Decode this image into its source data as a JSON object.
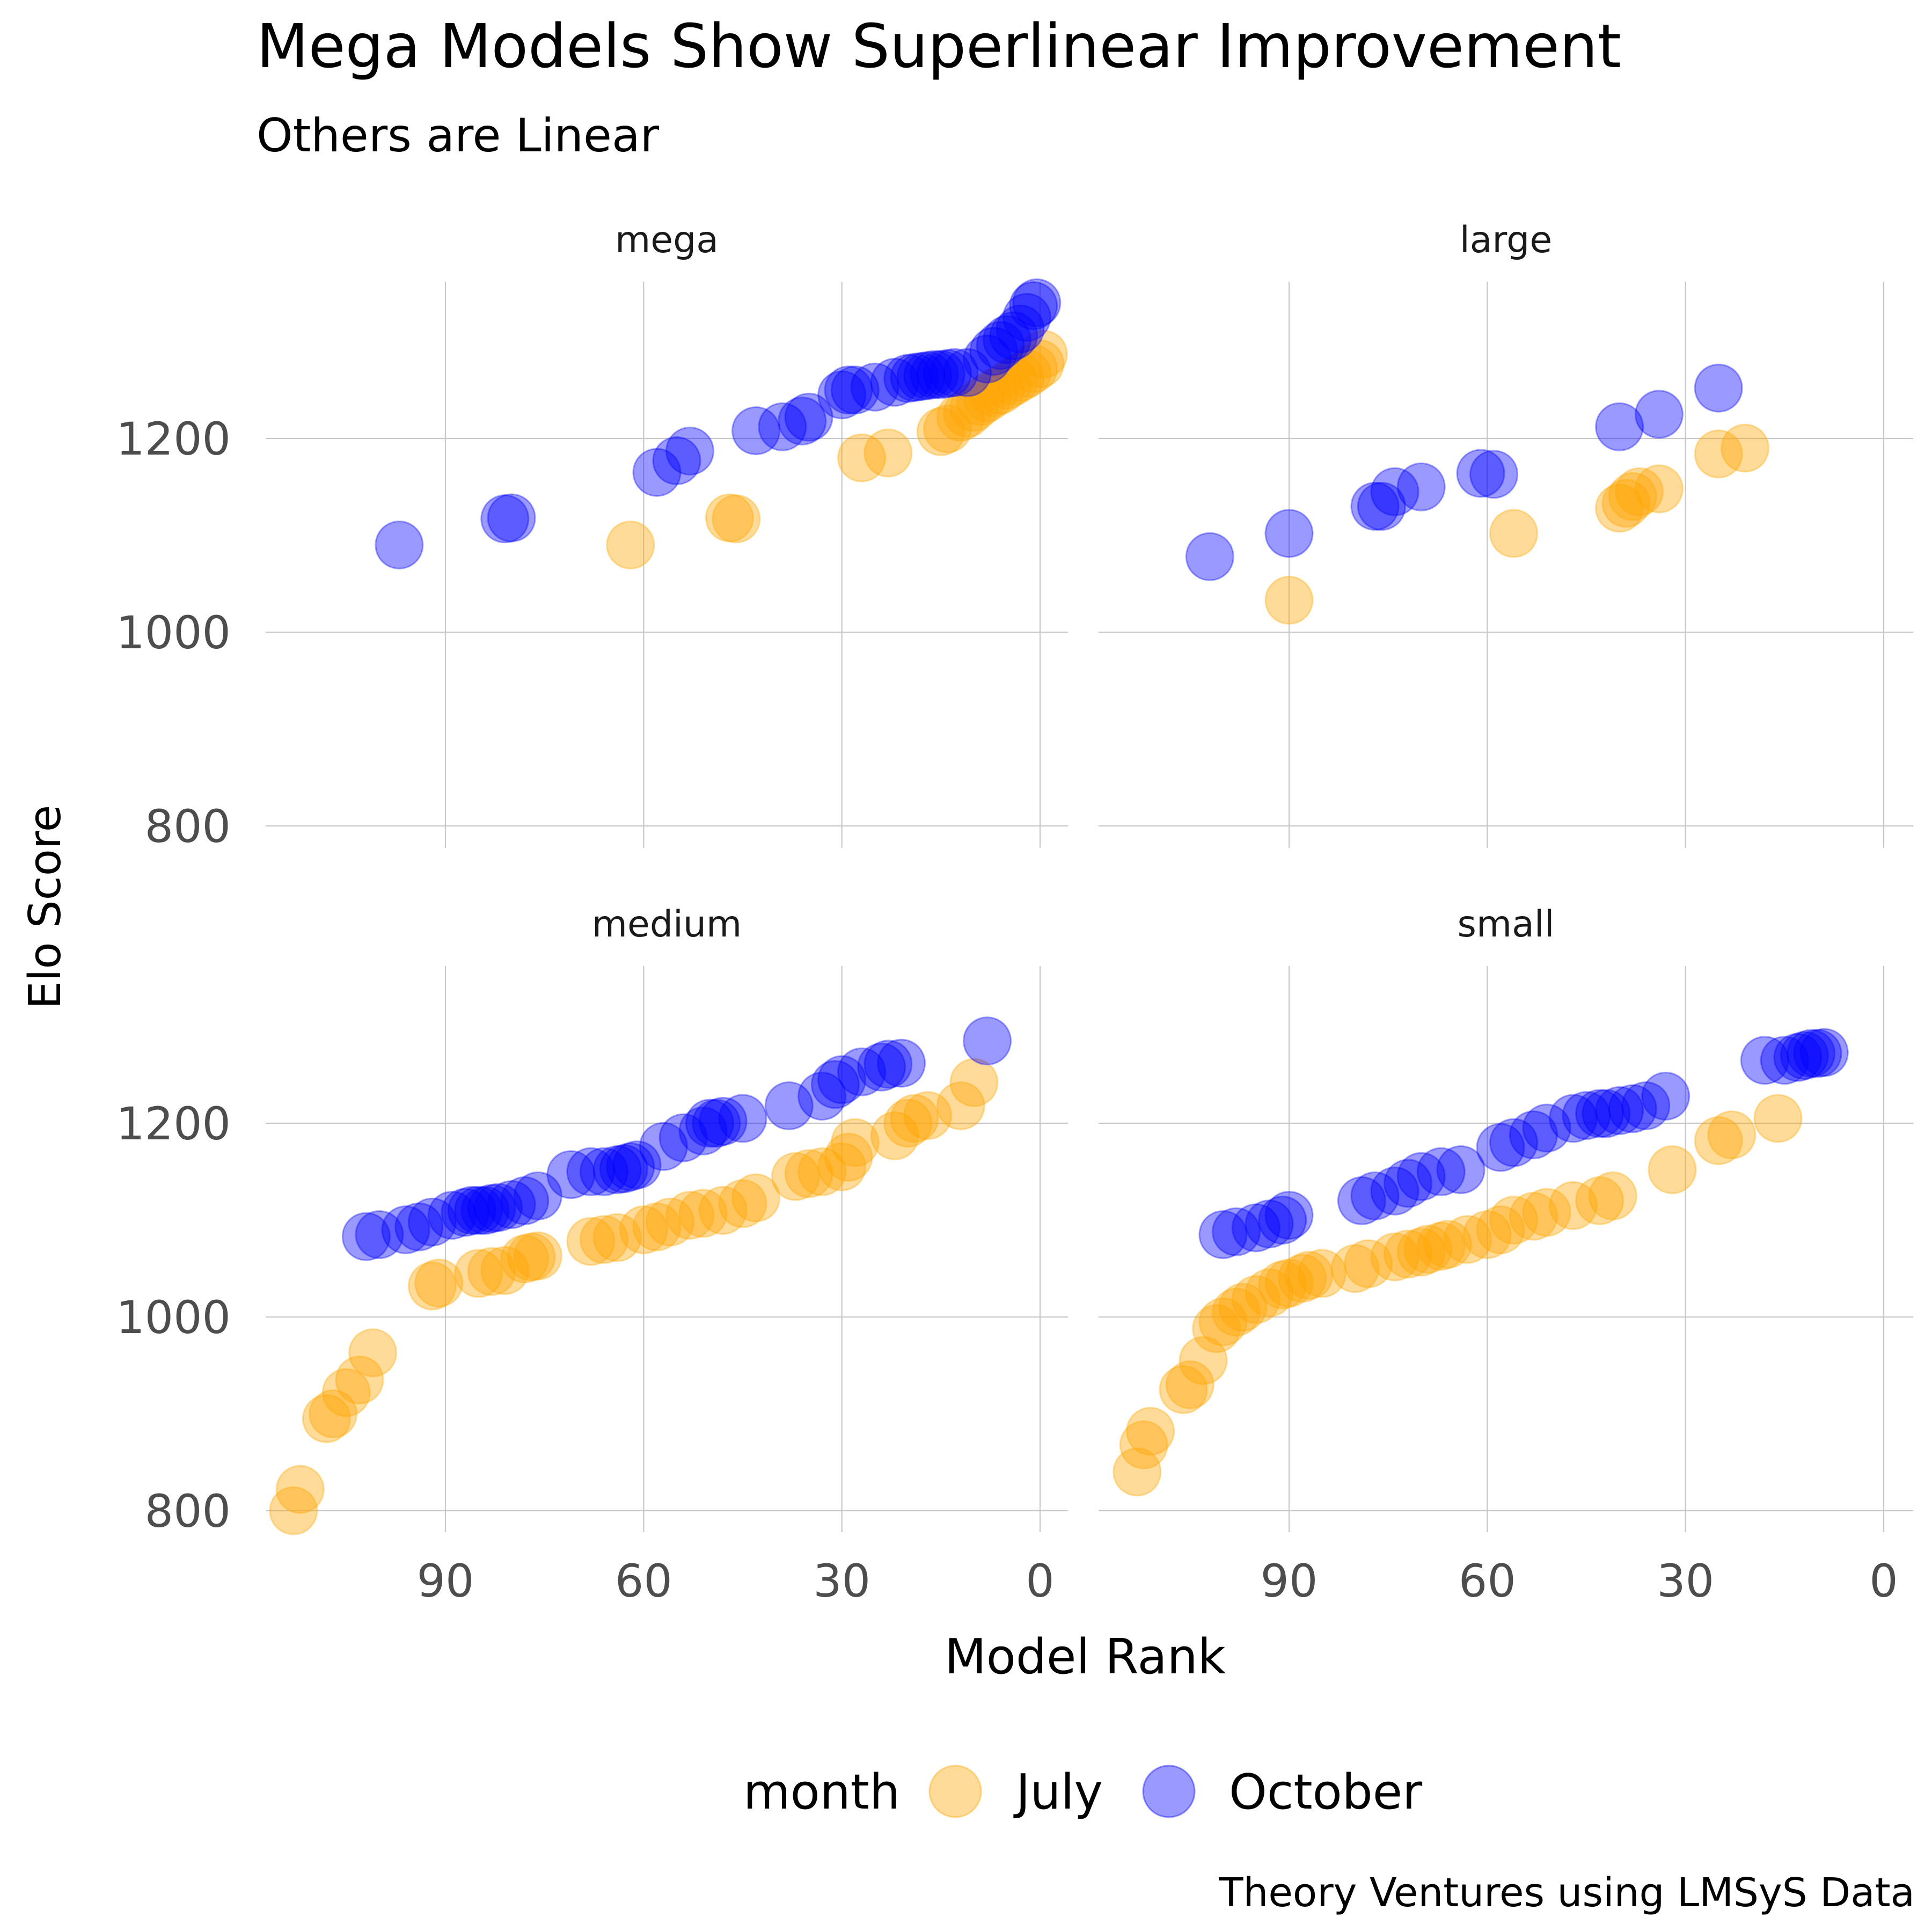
{
  "chart_data": {
    "type": "scatter",
    "title": "Mega Models Show Superlinear Improvement",
    "subtitle": "Others are Linear",
    "xlabel": "Model Rank",
    "ylabel": "Elo Score",
    "caption": "Theory Ventures using LMSyS Data",
    "x_reversed": true,
    "xlim": [
      114,
      -4
    ],
    "ylim": [
      780,
      1350
    ],
    "x_ticks": [
      90,
      60,
      30,
      0
    ],
    "y_ticks": [
      800,
      1000,
      1200
    ],
    "legend": {
      "title": "month",
      "position": "bottom",
      "entries": [
        {
          "label": "July",
          "color": "#FFA500"
        },
        {
          "label": "October",
          "color": "#0000FF"
        }
      ]
    },
    "panels": [
      {
        "name": "mega",
        "series": [
          {
            "name": "July",
            "color": "#FFA500",
            "points": [
              [
                62,
                1090
              ],
              [
                47,
                1118
              ],
              [
                46,
                1117
              ],
              [
                27,
                1180
              ],
              [
                23,
                1185
              ],
              [
                15,
                1207
              ],
              [
                14,
                1210
              ],
              [
                12,
                1222
              ],
              [
                11,
                1226
              ],
              [
                10,
                1232
              ],
              [
                9,
                1238
              ],
              [
                8,
                1242
              ],
              [
                7,
                1247
              ],
              [
                6,
                1250
              ],
              [
                5,
                1255
              ],
              [
                4,
                1259
              ],
              [
                3,
                1263
              ],
              [
                2,
                1267
              ],
              [
                1,
                1272
              ],
              [
                0,
                1277
              ],
              [
                -0.5,
                1287
              ]
            ]
          },
          {
            "name": "October",
            "color": "#0000FF",
            "points": [
              [
                97,
                1090
              ],
              [
                81,
                1117
              ],
              [
                80,
                1118
              ],
              [
                58,
                1165
              ],
              [
                55,
                1177
              ],
              [
                53,
                1187
              ],
              [
                43,
                1208
              ],
              [
                39,
                1212
              ],
              [
                36,
                1218
              ],
              [
                35,
                1222
              ],
              [
                30,
                1245
              ],
              [
                29,
                1250
              ],
              [
                28,
                1250
              ],
              [
                25,
                1253
              ],
              [
                22,
                1258
              ],
              [
                20,
                1262
              ],
              [
                19,
                1263
              ],
              [
                18,
                1264
              ],
              [
                17,
                1265
              ],
              [
                16,
                1266
              ],
              [
                15,
                1266
              ],
              [
                14,
                1267
              ],
              [
                13,
                1268
              ],
              [
                11,
                1268
              ],
              [
                8,
                1282
              ],
              [
                7,
                1290
              ],
              [
                6,
                1296
              ],
              [
                5,
                1302
              ],
              [
                4,
                1306
              ],
              [
                3,
                1313
              ],
              [
                2,
                1325
              ],
              [
                1,
                1337
              ],
              [
                0.5,
                1340
              ]
            ]
          }
        ]
      },
      {
        "name": "large",
        "series": [
          {
            "name": "July",
            "color": "#FFA500",
            "points": [
              [
                90,
                1033
              ],
              [
                56,
                1102
              ],
              [
                40,
                1128
              ],
              [
                39,
                1133
              ],
              [
                38,
                1140
              ],
              [
                37,
                1145
              ],
              [
                34,
                1148
              ],
              [
                25,
                1184
              ],
              [
                21,
                1190
              ]
            ]
          },
          {
            "name": "October",
            "color": "#0000FF",
            "points": [
              [
                102,
                1078
              ],
              [
                90,
                1102
              ],
              [
                77,
                1130
              ],
              [
                76,
                1130
              ],
              [
                74,
                1145
              ],
              [
                70,
                1150
              ],
              [
                61,
                1164
              ],
              [
                59,
                1163
              ],
              [
                40,
                1212
              ],
              [
                34,
                1225
              ],
              [
                25,
                1252
              ]
            ]
          }
        ]
      },
      {
        "name": "medium",
        "series": [
          {
            "name": "July",
            "color": "#FFA500",
            "points": [
              [
                113,
                800
              ],
              [
                112,
                822
              ],
              [
                108,
                895
              ],
              [
                107,
                900
              ],
              [
                105,
                922
              ],
              [
                103,
                935
              ],
              [
                101,
                963
              ],
              [
                92,
                1032
              ],
              [
                91,
                1035
              ],
              [
                85,
                1045
              ],
              [
                83,
                1047
              ],
              [
                81,
                1048
              ],
              [
                78,
                1060
              ],
              [
                77,
                1062
              ],
              [
                76,
                1063
              ],
              [
                68,
                1078
              ],
              [
                66,
                1080
              ],
              [
                64,
                1082
              ],
              [
                60,
                1090
              ],
              [
                58,
                1093
              ],
              [
                56,
                1098
              ],
              [
                53,
                1105
              ],
              [
                51,
                1107
              ],
              [
                48,
                1110
              ],
              [
                45,
                1117
              ],
              [
                43,
                1123
              ],
              [
                37,
                1145
              ],
              [
                35,
                1148
              ],
              [
                33,
                1150
              ],
              [
                30,
                1155
              ],
              [
                29,
                1165
              ],
              [
                28,
                1180
              ],
              [
                22,
                1187
              ],
              [
                20,
                1200
              ],
              [
                19,
                1205
              ],
              [
                17,
                1208
              ],
              [
                12,
                1218
              ],
              [
                10,
                1242
              ]
            ]
          },
          {
            "name": "October",
            "color": "#0000FF",
            "points": [
              [
                102,
                1083
              ],
              [
                100,
                1085
              ],
              [
                96,
                1090
              ],
              [
                94,
                1093
              ],
              [
                92,
                1098
              ],
              [
                89,
                1105
              ],
              [
                87,
                1108
              ],
              [
                86,
                1110
              ],
              [
                85,
                1110
              ],
              [
                84,
                1110
              ],
              [
                83,
                1112
              ],
              [
                82,
                1113
              ],
              [
                80,
                1116
              ],
              [
                78,
                1120
              ],
              [
                76,
                1125
              ],
              [
                71,
                1147
              ],
              [
                68,
                1150
              ],
              [
                66,
                1150
              ],
              [
                64,
                1152
              ],
              [
                63,
                1153
              ],
              [
                62,
                1155
              ],
              [
                61,
                1157
              ],
              [
                57,
                1176
              ],
              [
                54,
                1185
              ],
              [
                51,
                1192
              ],
              [
                50,
                1200
              ],
              [
                49,
                1200
              ],
              [
                48,
                1202
              ],
              [
                45,
                1205
              ],
              [
                38,
                1218
              ],
              [
                33,
                1228
              ],
              [
                31,
                1240
              ],
              [
                30,
                1245
              ],
              [
                27,
                1253
              ],
              [
                24,
                1258
              ],
              [
                23,
                1261
              ],
              [
                21,
                1262
              ],
              [
                8,
                1285
              ]
            ]
          }
        ]
      },
      {
        "name": "small",
        "series": [
          {
            "name": "July",
            "color": "#FFA500",
            "points": [
              [
                113,
                840
              ],
              [
                112,
                868
              ],
              [
                111,
                882
              ],
              [
                106,
                925
              ],
              [
                105,
                930
              ],
              [
                103,
                955
              ],
              [
                101,
                988
              ],
              [
                100,
                995
              ],
              [
                98,
                1005
              ],
              [
                97,
                1010
              ],
              [
                95,
                1018
              ],
              [
                93,
                1025
              ],
              [
                91,
                1033
              ],
              [
                90,
                1035
              ],
              [
                88,
                1040
              ],
              [
                87,
                1043
              ],
              [
                85,
                1045
              ],
              [
                80,
                1050
              ],
              [
                78,
                1055
              ],
              [
                74,
                1062
              ],
              [
                72,
                1065
              ],
              [
                70,
                1067
              ],
              [
                69,
                1070
              ],
              [
                67,
                1073
              ],
              [
                66,
                1075
              ],
              [
                63,
                1080
              ],
              [
                60,
                1085
              ],
              [
                58,
                1090
              ],
              [
                56,
                1100
              ],
              [
                53,
                1104
              ],
              [
                51,
                1108
              ],
              [
                47,
                1115
              ],
              [
                43,
                1120
              ],
              [
                41,
                1125
              ],
              [
                32,
                1152
              ],
              [
                25,
                1182
              ],
              [
                23,
                1188
              ],
              [
                16,
                1205
              ]
            ]
          },
          {
            "name": "October",
            "color": "#0000FF",
            "points": [
              [
                100,
                1085
              ],
              [
                98,
                1088
              ],
              [
                95,
                1092
              ],
              [
                93,
                1096
              ],
              [
                91,
                1100
              ],
              [
                90,
                1105
              ],
              [
                79,
                1120
              ],
              [
                77,
                1125
              ],
              [
                74,
                1130
              ],
              [
                72,
                1138
              ],
              [
                70,
                1145
              ],
              [
                67,
                1150
              ],
              [
                64,
                1152
              ],
              [
                58,
                1175
              ],
              [
                56,
                1180
              ],
              [
                53,
                1188
              ],
              [
                51,
                1195
              ],
              [
                47,
                1205
              ],
              [
                45,
                1208
              ],
              [
                43,
                1210
              ],
              [
                42,
                1210
              ],
              [
                40,
                1213
              ],
              [
                38,
                1215
              ],
              [
                36,
                1218
              ],
              [
                33,
                1228
              ],
              [
                18,
                1265
              ],
              [
                15,
                1265
              ],
              [
                13,
                1268
              ],
              [
                12,
                1270
              ],
              [
                11,
                1272
              ],
              [
                10,
                1272
              ],
              [
                9,
                1273
              ]
            ]
          }
        ]
      }
    ]
  }
}
